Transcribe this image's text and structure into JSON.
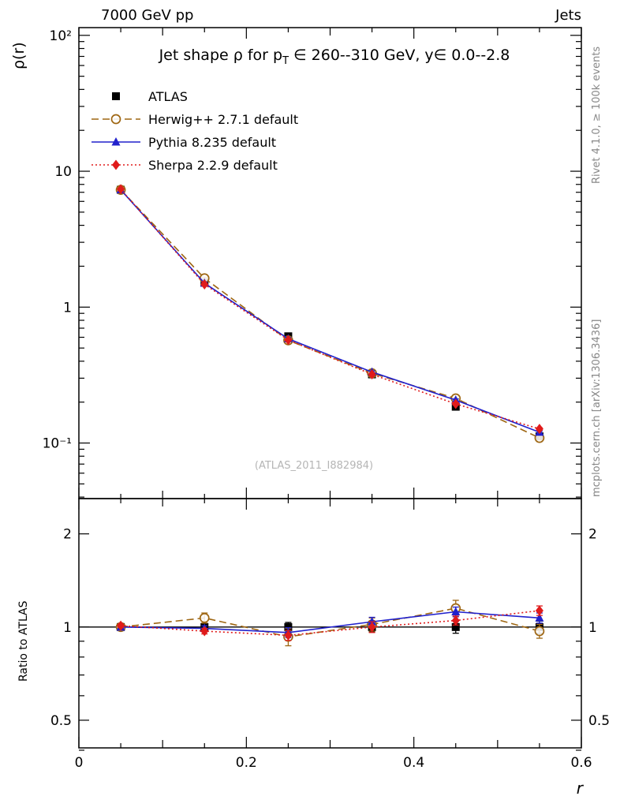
{
  "header": {
    "left": "7000 GeV pp",
    "right": "Jets"
  },
  "side_labels": {
    "right_top": "Rivet 4.1.0, ≥ 100k events",
    "right_bottom": "mcplots.cern.ch [arXiv:1306.3436]"
  },
  "watermark": "(ATLAS_2011_I882984)",
  "chart_data": {
    "type": "line",
    "title": {
      "pre": "Jet shape ρ for p",
      "sub": "T",
      "post": " ∈ 260--310 GeV, y∈ 0.0--2.8"
    },
    "xlabel": "r",
    "ylabel": "ρ(r)",
    "ratio_ylabel": "Ratio to ATLAS",
    "legend_position": "top-left",
    "grid": false,
    "yscale_main": "log",
    "yscale_ratio": "log",
    "x": [
      0.05,
      0.15,
      0.25,
      0.35,
      0.45,
      0.55
    ],
    "xlim": [
      0,
      0.6
    ],
    "ylim_main": [
      0.039,
      114
    ],
    "ylim_ratio": [
      0.407,
      2.6
    ],
    "xticks": {
      "values": [
        0,
        0.2,
        0.4,
        0.6
      ],
      "labels": [
        "0",
        "0.2",
        "0.4",
        "0.6"
      ]
    },
    "yticks_main": [
      {
        "value": 100,
        "label": "10²"
      },
      {
        "value": 10,
        "label": "10"
      },
      {
        "value": 1,
        "label": "1"
      },
      {
        "value": 0.1,
        "label": "10⁻¹"
      }
    ],
    "yticks_ratio": [
      {
        "value": 2,
        "label": "2"
      },
      {
        "value": 1,
        "label": "1"
      },
      {
        "value": 0.5,
        "label": "0.5"
      }
    ],
    "series": [
      {
        "name": "ATLAS",
        "color": "#000000",
        "marker": "square-filled",
        "line": "none",
        "err_frac": 0.035,
        "values": [
          7.3,
          1.52,
          0.61,
          0.32,
          0.185,
          0.112
        ],
        "ratio": [
          1,
          1,
          1,
          1,
          1,
          1
        ],
        "ratio_err": [
          0.012,
          0.02,
          0.035,
          0.035,
          0.045,
          0.045
        ]
      },
      {
        "name": "Herwig++ 2.7.1 default",
        "color": "#9e6612",
        "marker": "circle-open",
        "line": "dashed",
        "err_frac": 0.02,
        "values": [
          7.3,
          1.63,
          0.57,
          0.326,
          0.213,
          0.109
        ],
        "ratio": [
          1.0,
          1.07,
          0.93,
          1.02,
          1.15,
          0.97
        ],
        "ratio_err": [
          0.02,
          0.04,
          0.06,
          0.05,
          0.07,
          0.05
        ]
      },
      {
        "name": "Pythia 8.235 default",
        "color": "#2121cc",
        "marker": "triangle-filled",
        "line": "solid",
        "err_frac": 0.02,
        "values": [
          7.3,
          1.5,
          0.585,
          0.333,
          0.207,
          0.12
        ],
        "ratio": [
          1.0,
          0.99,
          0.96,
          1.04,
          1.12,
          1.07
        ],
        "ratio_err": [
          0.012,
          0.02,
          0.035,
          0.035,
          0.04,
          0.04
        ]
      },
      {
        "name": "Sherpa 2.2.9 default",
        "color": "#e01b1b",
        "marker": "diamond-filled",
        "line": "dotted",
        "err_frac": 0.02,
        "values": [
          7.37,
          1.47,
          0.573,
          0.32,
          0.194,
          0.127
        ],
        "ratio": [
          1.01,
          0.97,
          0.94,
          1.0,
          1.05,
          1.13
        ],
        "ratio_err": [
          0.012,
          0.02,
          0.035,
          0.04,
          0.035,
          0.04
        ]
      }
    ]
  }
}
